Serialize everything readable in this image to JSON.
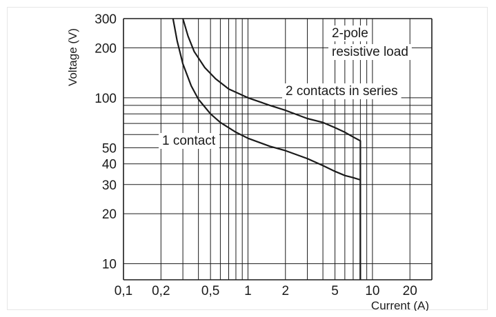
{
  "chart_data": {
    "type": "line",
    "title": "",
    "xlabel": "Current (A)",
    "ylabel": "Voltage (V)",
    "x_scale": "log",
    "y_scale": "log",
    "xlim": [
      0.1,
      30
    ],
    "ylim": [
      8,
      300
    ],
    "grid": true,
    "x_tick_labels": [
      {
        "value": 0.1,
        "label": "0,1"
      },
      {
        "value": 0.2,
        "label": "0,2"
      },
      {
        "value": 0.5,
        "label": "0,5"
      },
      {
        "value": 1,
        "label": "1"
      },
      {
        "value": 2,
        "label": "2"
      },
      {
        "value": 5,
        "label": "5"
      },
      {
        "value": 10,
        "label": "10"
      },
      {
        "value": 20,
        "label": "20"
      }
    ],
    "y_tick_labels": [
      {
        "value": 10,
        "label": "10"
      },
      {
        "value": 20,
        "label": "20"
      },
      {
        "value": 30,
        "label": "30"
      },
      {
        "value": 40,
        "label": "40"
      },
      {
        "value": 50,
        "label": "50"
      },
      {
        "value": 100,
        "label": "100"
      },
      {
        "value": 200,
        "label": "200"
      },
      {
        "value": 300,
        "label": "300"
      }
    ],
    "series": [
      {
        "name": "1 contact",
        "x": [
          0.25,
          0.27,
          0.3,
          0.35,
          0.4,
          0.5,
          0.6,
          0.8,
          1.0,
          1.5,
          2.0,
          3.0,
          4.0,
          5.0,
          6.0,
          7.0,
          8.0,
          8.0
        ],
        "y": [
          300,
          220,
          160,
          118,
          98,
          80,
          71,
          62,
          57,
          51,
          48,
          43,
          39,
          36,
          34,
          33,
          32,
          8
        ]
      },
      {
        "name": "2 contacts in series",
        "x": [
          0.3,
          0.33,
          0.37,
          0.45,
          0.55,
          0.7,
          1.0,
          1.5,
          2.0,
          3.0,
          4.0,
          5.0,
          6.0,
          7.0,
          8.0,
          8.0
        ],
        "y": [
          300,
          235,
          190,
          152,
          130,
          113,
          100,
          90,
          84,
          75,
          71,
          66,
          62,
          58,
          55,
          8
        ]
      }
    ],
    "annotations": [
      {
        "text": "1 contact"
      },
      {
        "text": "2 contacts in series"
      },
      {
        "text": "2-pole"
      },
      {
        "text": "resistive load"
      }
    ]
  }
}
